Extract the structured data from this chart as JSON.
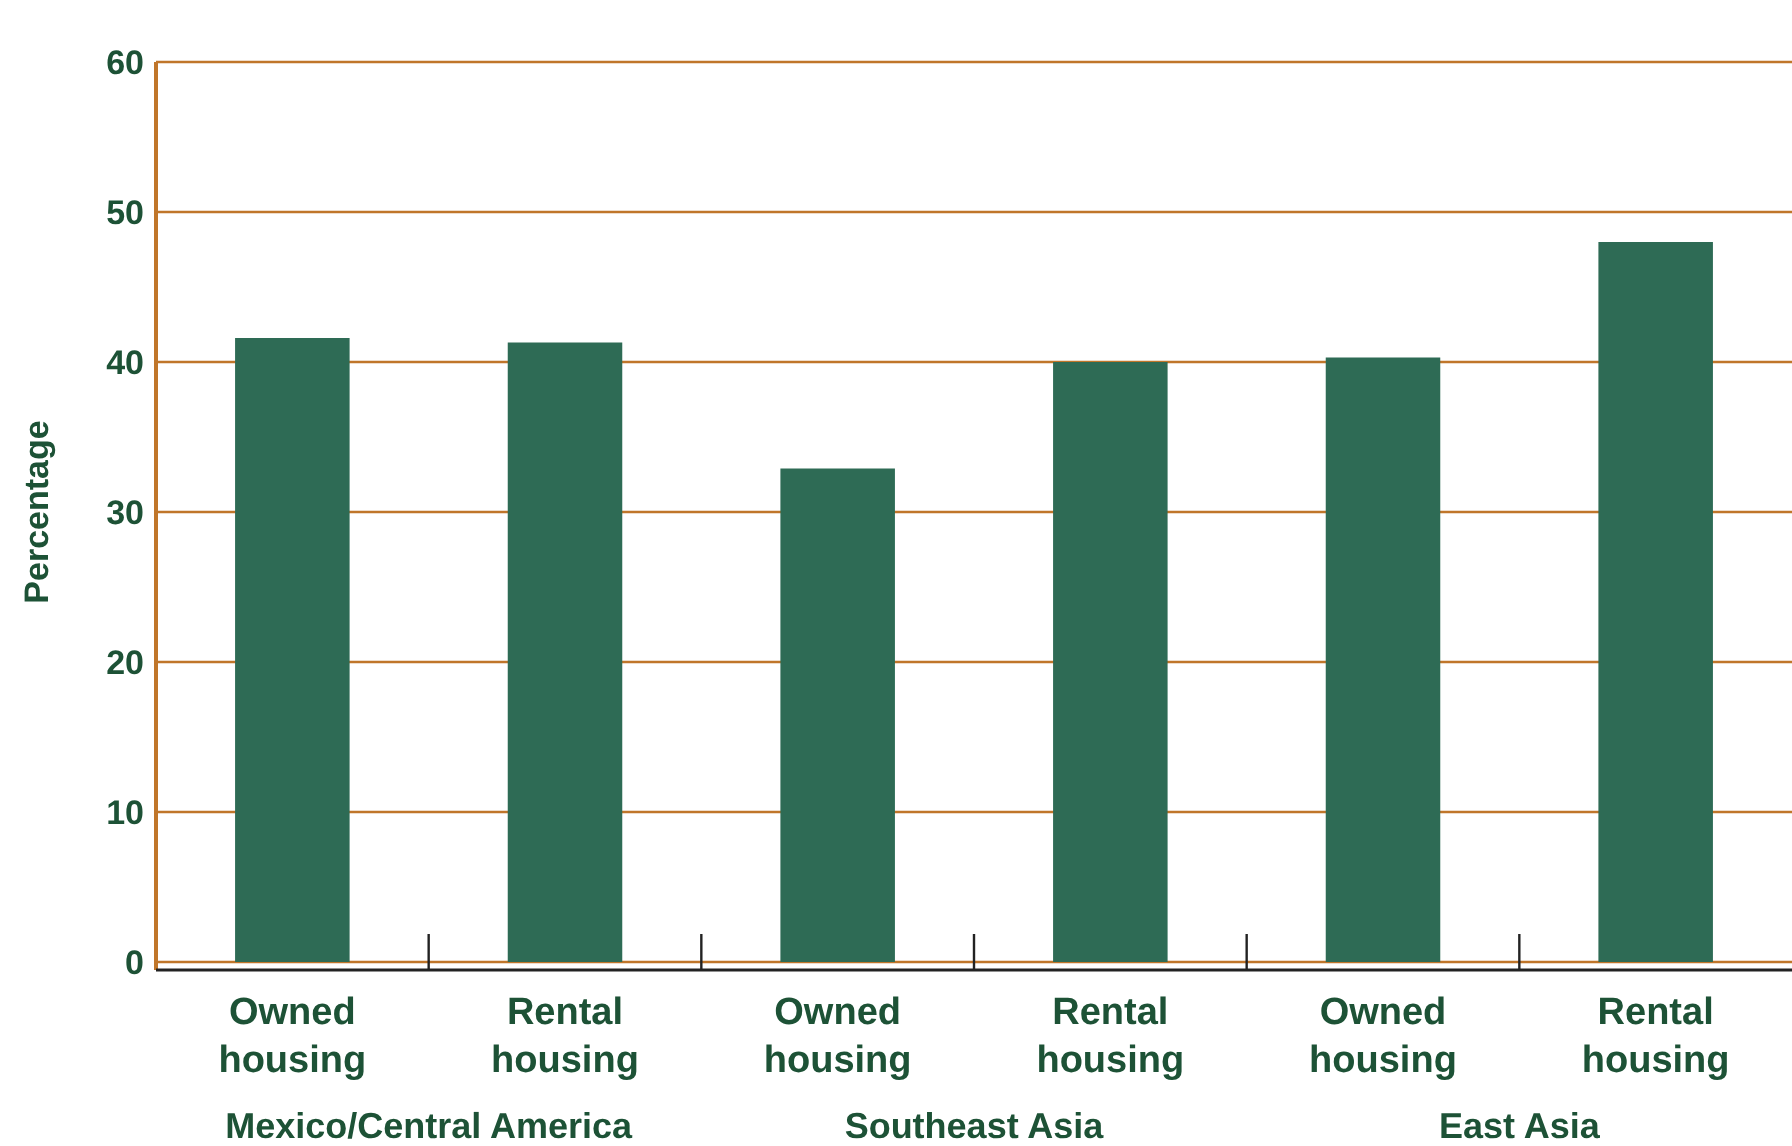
{
  "chart_data": {
    "type": "bar",
    "ylabel": "Percentage",
    "categories": [
      "Owned housing",
      "Rental housing",
      "Owned housing",
      "Rental housing",
      "Owned housing",
      "Rental housing"
    ],
    "values": [
      41.6,
      41.3,
      32.9,
      40,
      40.3,
      48
    ],
    "color": "#2e6b55",
    "ylim": [
      0,
      60
    ],
    "yticks": [
      0,
      10,
      20,
      30,
      40,
      50,
      60
    ],
    "grid": "y",
    "annotations": [
      "Mexico/Central America",
      "Southeast Asia",
      "East Asia"
    ]
  }
}
